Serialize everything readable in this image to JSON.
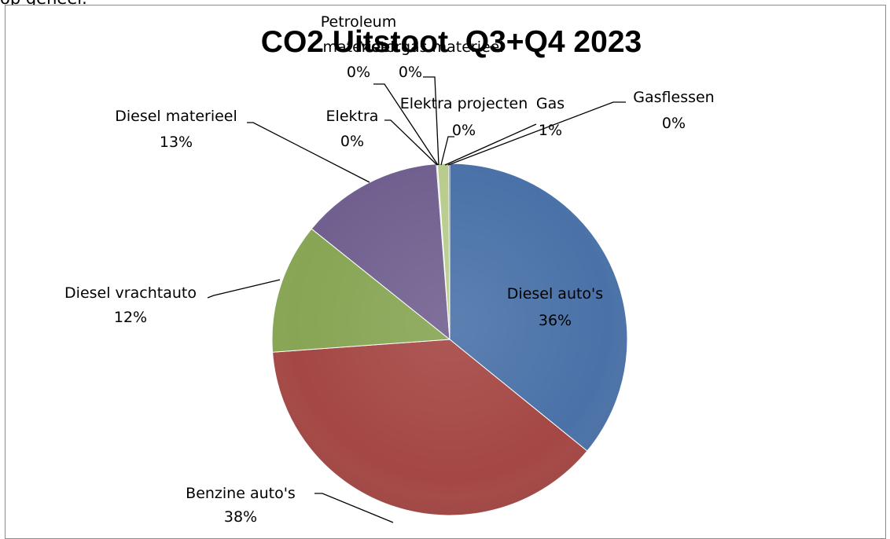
{
  "page_top_text": "op geheel.",
  "chart_data": {
    "type": "pie",
    "title": "CO2 Uitstoot  Q3+Q4 2023",
    "legend": "none",
    "slices": [
      {
        "label": "Diesel auto's",
        "value": 36,
        "percent_label": "36%",
        "color": "#4a72a8"
      },
      {
        "label": "Benzine auto's",
        "value": 38,
        "percent_label": "38%",
        "color": "#a54744"
      },
      {
        "label": "Diesel vrachtauto",
        "value": 12,
        "percent_label": "12%",
        "color": "#87a554"
      },
      {
        "label": "Diesel materieel",
        "value": 13,
        "percent_label": "13%",
        "color": "#71608f"
      },
      {
        "label": "Elektra",
        "value": 0,
        "percent_label": "0%",
        "color": "#3d9ab5"
      },
      {
        "label": "Petroleum materieel",
        "value": 0,
        "percent_label": "0%",
        "color": "#e08f3c"
      },
      {
        "label": "Motorgas materieel",
        "value": 0,
        "percent_label": "0%",
        "color": "#93aacf"
      },
      {
        "label": "Elektra projecten",
        "value": 0,
        "percent_label": "0%",
        "color": "#d09391"
      },
      {
        "label": "Gas",
        "value": 1,
        "percent_label": "1%",
        "color": "#b8cc8d"
      },
      {
        "label": "Gasflessen",
        "value": 0,
        "percent_label": "0%",
        "color": "#a394bb"
      }
    ]
  }
}
